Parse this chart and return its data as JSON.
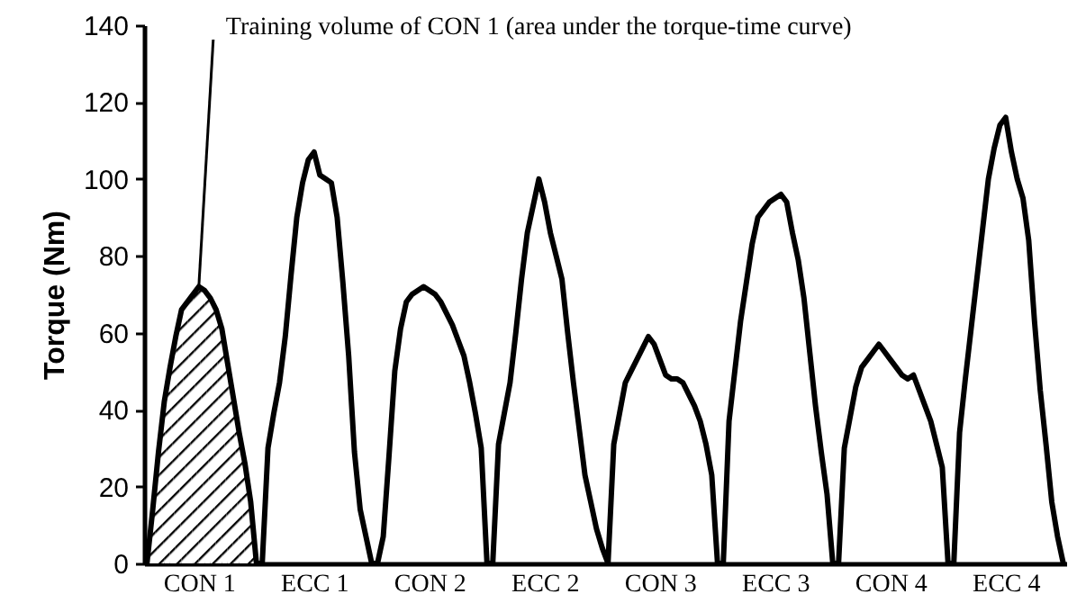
{
  "chart_data": {
    "type": "line",
    "ylabel": "Torque (Nm)",
    "annotations": [
      {
        "text": "Training volume of CON 1 (area under the torque-time curve)",
        "x": "CON 1",
        "y": 72
      }
    ],
    "categories": [
      null,
      null,
      null,
      null,
      null,
      null,
      null,
      null,
      null,
      "CON 1",
      null,
      null,
      null,
      null,
      null,
      null,
      null,
      null,
      null,
      null,
      null,
      null,
      null,
      null,
      null,
      null,
      null,
      null,
      null,
      "ECC 1",
      null,
      null,
      null,
      null,
      null,
      null,
      null,
      null,
      null,
      null,
      null,
      null,
      null,
      null,
      null,
      null,
      null,
      null,
      null,
      "CON 2",
      null,
      null,
      null,
      null,
      null,
      null,
      null,
      null,
      null,
      null,
      null,
      null,
      null,
      null,
      null,
      null,
      null,
      null,
      null,
      "ECC 2",
      null,
      null,
      null,
      null,
      null,
      null,
      null,
      null,
      null,
      null,
      null,
      null,
      null,
      null,
      null,
      null,
      null,
      null,
      null,
      "CON 3",
      null,
      null,
      null,
      null,
      null,
      null,
      null,
      null,
      null,
      null,
      null,
      null,
      null,
      null,
      null,
      null,
      null,
      null,
      null,
      "ECC 3",
      null,
      null,
      null,
      null,
      null,
      null,
      null,
      null,
      null,
      null,
      null,
      null,
      null,
      null,
      null,
      null,
      null,
      null,
      null,
      "CON 4",
      null,
      null,
      null,
      null,
      null,
      null,
      null,
      null,
      null,
      null,
      null,
      null,
      null,
      null,
      null,
      null,
      null,
      null,
      null,
      "ECC 4",
      null,
      null,
      null,
      null,
      null,
      null,
      null,
      null,
      null,
      null
    ],
    "ylim": [
      0,
      140
    ],
    "yticks": [
      0,
      20,
      40,
      60,
      80,
      100,
      120,
      140
    ],
    "grid": false,
    "marker": "none",
    "line_style": "solid",
    "series": [
      {
        "type": "area",
        "color": "#000000",
        "values": [
          0,
          14,
          29,
          42,
          51,
          59,
          66,
          68,
          70,
          72,
          71,
          69,
          66,
          61,
          52,
          43,
          34,
          26,
          16,
          0,
          null,
          null,
          null,
          null,
          null,
          null,
          null,
          null,
          null,
          null,
          null,
          null,
          null,
          null,
          null,
          null,
          null,
          null,
          null,
          null,
          null,
          null,
          null,
          null,
          null,
          null,
          null,
          null,
          null,
          null,
          null,
          null,
          null,
          null,
          null,
          null,
          null,
          null,
          null,
          null,
          null,
          null,
          null,
          null,
          null,
          null,
          null,
          null,
          null,
          null,
          null,
          null,
          null,
          null,
          null,
          null,
          null,
          null,
          null,
          null,
          null,
          null,
          null,
          null,
          null,
          null,
          null,
          null,
          null,
          null,
          null,
          null,
          null,
          null,
          null,
          null,
          null,
          null,
          null,
          null,
          null,
          null,
          null,
          null,
          null,
          null,
          null,
          null,
          null,
          null,
          null,
          null,
          null,
          null,
          null,
          null,
          null,
          null,
          null,
          null,
          null,
          null,
          null,
          null,
          null,
          null,
          null,
          null,
          null,
          null,
          null,
          null,
          null,
          null,
          null,
          null,
          null,
          null,
          null,
          null,
          null,
          null,
          null,
          null,
          null,
          null,
          null,
          null,
          null,
          null,
          null,
          null,
          null,
          null,
          null,
          null,
          null,
          null,
          null,
          null
        ]
      },
      {
        "color": "#000000",
        "values": [
          0,
          14,
          29,
          42,
          51,
          59,
          66,
          68,
          70,
          72,
          71,
          69,
          66,
          61,
          52,
          43,
          34,
          26,
          16,
          0,
          0,
          30,
          39,
          47,
          59,
          75,
          90,
          99,
          105,
          107,
          101,
          100,
          99,
          90,
          73,
          54,
          29,
          14,
          7,
          0,
          0,
          7,
          28,
          50,
          61,
          68,
          70,
          71,
          72,
          71,
          70,
          68,
          65,
          62,
          58,
          54,
          47,
          39,
          30,
          0,
          0,
          31,
          39,
          47,
          60,
          74,
          86,
          93,
          100,
          94,
          86,
          80,
          74,
          60,
          47,
          35,
          23,
          16,
          9,
          4,
          0,
          31,
          39,
          47,
          50,
          53,
          56,
          59,
          57,
          53,
          49,
          48,
          48,
          47,
          44,
          41,
          37,
          31,
          23,
          0,
          0,
          37,
          50,
          63,
          73,
          83,
          90,
          92,
          94,
          95,
          96,
          94,
          86,
          79,
          69,
          55,
          41,
          29,
          18,
          0,
          0,
          30,
          38,
          46,
          51,
          53,
          55,
          57,
          55,
          53,
          51,
          49,
          48,
          49,
          45,
          41,
          37,
          31,
          25,
          0,
          0,
          34,
          48,
          61,
          74,
          87,
          100,
          108,
          114,
          116,
          107,
          100,
          95,
          84,
          63,
          45,
          31,
          16,
          7,
          0
        ]
      }
    ]
  }
}
